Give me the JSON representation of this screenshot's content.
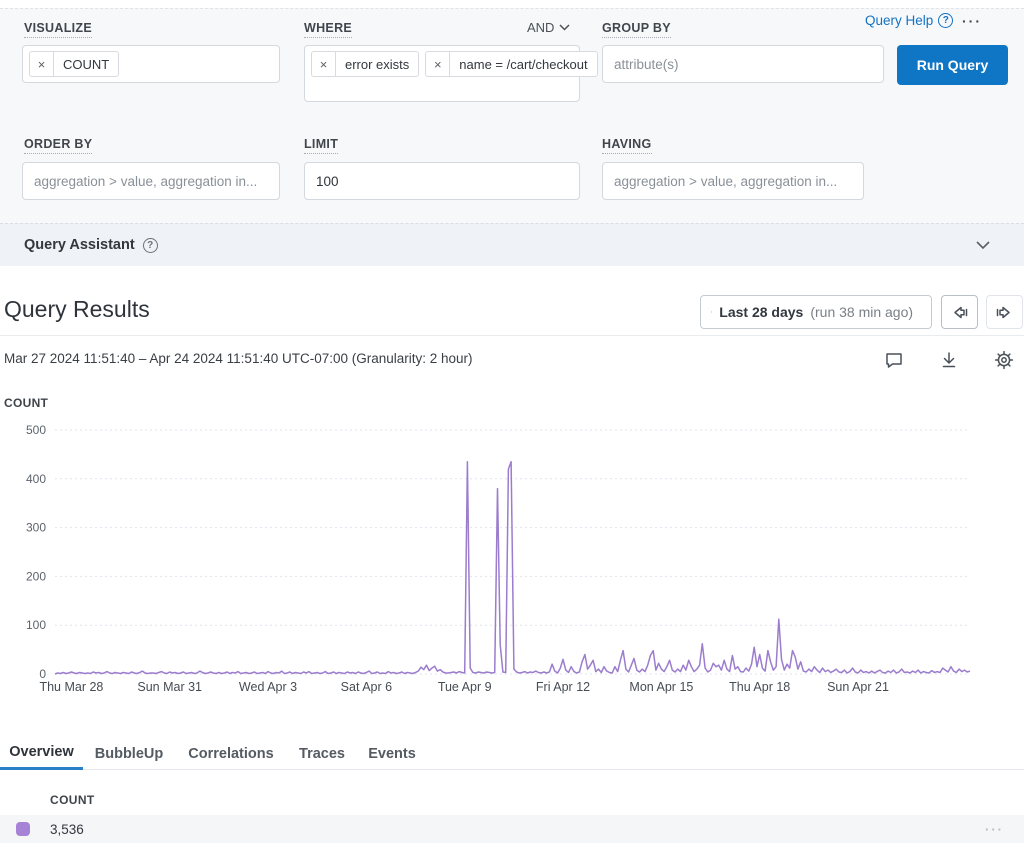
{
  "query_builder": {
    "visualize": {
      "label": "VISUALIZE",
      "pill": {
        "remove": "×",
        "text": "COUNT"
      }
    },
    "where": {
      "label": "WHERE",
      "join_operator": "AND",
      "pills": [
        {
          "remove": "×",
          "text": "error exists"
        },
        {
          "remove": "×",
          "text": "name = /cart/checkout"
        }
      ]
    },
    "group_by": {
      "label": "GROUP BY",
      "placeholder": "attribute(s)"
    },
    "order_by": {
      "label": "ORDER BY",
      "placeholder": "aggregation > value, aggregation in..."
    },
    "limit": {
      "label": "LIMIT",
      "value": "100"
    },
    "having": {
      "label": "HAVING",
      "placeholder": "aggregation > value, aggregation in..."
    },
    "query_help_label": "Query Help",
    "help_glyph": "?",
    "menu_dots": "···",
    "run_query_label": "Run Query"
  },
  "query_assistant": {
    "title": "Query Assistant",
    "help_glyph": "?"
  },
  "results": {
    "title": "Query Results",
    "time_range": {
      "label": "Last 28 days",
      "suffix": "(run 38 min ago)"
    },
    "date_range": "Mar 27 2024 11:51:40 – Apr 24 2024 11:51:40 UTC-07:00 (Granularity: 2 hour)",
    "metric_label": "COUNT"
  },
  "tabs": [
    {
      "label": "Overview",
      "active": true
    },
    {
      "label": "BubbleUp",
      "active": false
    },
    {
      "label": "Correlations",
      "active": false
    },
    {
      "label": "Traces",
      "active": false
    },
    {
      "label": "Events",
      "active": false
    }
  ],
  "table": {
    "header": "COUNT",
    "rows": [
      {
        "value": "3,536",
        "swatch_color": "#a783d6"
      }
    ],
    "row_menu": "···"
  },
  "colors": {
    "accent_blue": "#0f75c5",
    "link_blue": "#1273c4",
    "series_purple": "#9b7ccd",
    "swatch_purple": "#a783d6",
    "panel_bg": "#f7f8fa",
    "assistant_bg": "#eff2f6",
    "row_bg": "#f4f6f8",
    "tab_underline": "#2b7fc7"
  },
  "chart_data": {
    "type": "line",
    "title": "COUNT",
    "xlabel": "",
    "ylabel": "COUNT",
    "ylim": [
      0,
      500
    ],
    "yticks": [
      0,
      100,
      200,
      300,
      400,
      500
    ],
    "grid": true,
    "legend": false,
    "granularity": "2 hour",
    "x_start": "Mar 27 2024 11:51:40",
    "x_end": "Apr 24 2024 11:51:40",
    "xticks": [
      {
        "index": 6,
        "label": "Thu Mar 28"
      },
      {
        "index": 42,
        "label": "Sun Mar 31"
      },
      {
        "index": 78,
        "label": "Wed Apr 3"
      },
      {
        "index": 114,
        "label": "Sat Apr 6"
      },
      {
        "index": 150,
        "label": "Tue Apr 9"
      },
      {
        "index": 186,
        "label": "Fri Apr 12"
      },
      {
        "index": 222,
        "label": "Mon Apr 15"
      },
      {
        "index": 258,
        "label": "Thu Apr 18"
      },
      {
        "index": 294,
        "label": "Sun Apr 21"
      }
    ],
    "values": [
      0,
      2,
      1,
      3,
      1,
      2,
      4,
      2,
      1,
      3,
      2,
      1,
      2,
      1,
      4,
      2,
      3,
      1,
      2,
      5,
      2,
      1,
      3,
      2,
      1,
      3,
      2,
      1,
      4,
      2,
      1,
      3,
      6,
      2,
      1,
      2,
      2,
      1,
      3,
      5,
      2,
      1,
      4,
      2,
      3,
      1,
      2,
      4,
      1,
      2,
      3,
      1,
      2,
      6,
      3,
      1,
      2,
      4,
      2,
      1,
      3,
      1,
      2,
      4,
      1,
      3,
      2,
      5,
      1,
      2,
      3,
      1,
      2,
      4,
      1,
      2,
      3,
      1,
      5,
      2,
      1,
      3,
      2,
      6,
      1,
      2,
      4,
      1,
      3,
      2,
      1,
      4,
      2,
      5,
      1,
      2,
      3,
      1,
      2,
      5,
      1,
      2,
      4,
      1,
      3,
      2,
      1,
      4,
      2,
      3,
      1,
      4,
      2,
      1,
      3,
      6,
      1,
      2,
      4,
      1,
      2,
      1,
      5,
      2,
      3,
      1,
      2,
      4,
      1,
      3,
      2,
      1,
      3,
      6,
      14,
      9,
      18,
      7,
      12,
      16,
      6,
      9,
      4,
      2,
      2,
      3,
      4,
      2,
      5,
      3,
      2,
      435,
      12,
      3,
      2,
      4,
      3,
      2,
      4,
      3,
      2,
      3,
      380,
      60,
      4,
      3,
      420,
      435,
      10,
      4,
      2,
      3,
      5,
      2,
      4,
      3,
      6,
      3,
      2,
      4,
      2,
      4,
      20,
      6,
      2,
      12,
      30,
      8,
      3,
      15,
      5,
      2,
      4,
      25,
      40,
      10,
      18,
      28,
      5,
      10,
      3,
      15,
      6,
      3,
      2,
      15,
      5,
      28,
      48,
      10,
      4,
      18,
      32,
      8,
      4,
      10,
      5,
      18,
      38,
      48,
      8,
      22,
      10,
      5,
      15,
      28,
      8,
      4,
      10,
      5,
      18,
      8,
      28,
      15,
      5,
      10,
      18,
      62,
      12,
      4,
      8,
      22,
      15,
      18,
      8,
      28,
      10,
      5,
      38,
      10,
      15,
      5,
      4,
      12,
      6,
      20,
      55,
      15,
      40,
      12,
      6,
      48,
      25,
      8,
      15,
      112,
      30,
      8,
      20,
      12,
      48,
      35,
      10,
      25,
      6,
      4,
      10,
      5,
      15,
      8,
      3,
      12,
      5,
      8,
      3,
      6,
      10,
      4,
      3,
      8,
      2,
      5,
      12,
      4,
      2,
      8,
      3,
      5,
      2,
      6,
      2,
      5,
      8,
      3,
      2,
      6,
      3,
      8,
      2,
      4,
      10,
      3,
      4,
      2,
      6,
      3,
      8,
      2,
      5,
      3,
      2,
      7,
      3,
      5,
      3,
      12,
      8,
      4,
      15,
      6,
      3,
      10,
      5,
      8,
      4,
      6
    ],
    "total": 3536
  }
}
